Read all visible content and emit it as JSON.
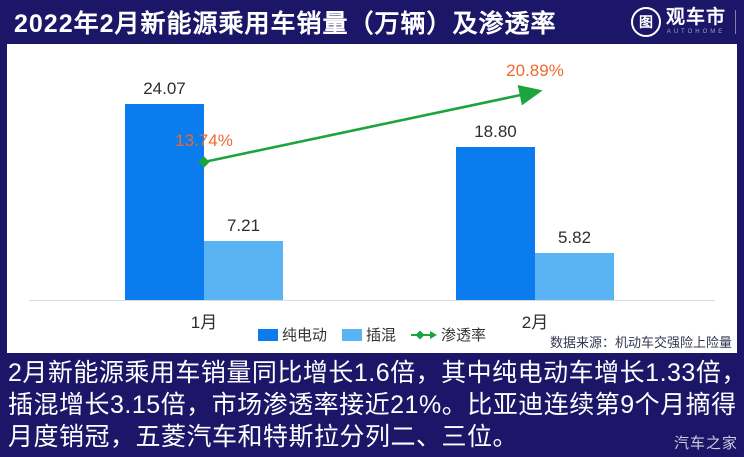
{
  "header": {
    "title": "2022年2月新能源乘用车销量（万辆）及渗透率",
    "logo": {
      "icon_char": "图",
      "brand": "观车市",
      "sub": "AUTOHOME"
    }
  },
  "chart_data": {
    "type": "bar",
    "title": "2022年2月新能源乘用车销量（万辆）及渗透率",
    "categories": [
      "1月",
      "2月"
    ],
    "series": [
      {
        "name": "纯电动",
        "type": "bar",
        "color": "#0a7cee",
        "values": [
          24.07,
          18.8
        ],
        "labels": [
          "24.07",
          "18.80"
        ],
        "label_color": "#2e2e2e"
      },
      {
        "name": "插混",
        "type": "bar",
        "color": "#5ab4f3",
        "values": [
          7.21,
          5.82
        ],
        "labels": [
          "7.21",
          "5.82"
        ],
        "label_color": "#2e2e2e"
      },
      {
        "name": "渗透率",
        "type": "line",
        "color": "#1ca53e",
        "values": [
          13.74,
          20.89
        ],
        "labels": [
          "13.74%",
          "20.89%"
        ],
        "label_color": "#ed6a2f"
      }
    ],
    "bar_ylim": [
      0,
      30
    ],
    "grid": false,
    "legend_position": "bottom",
    "source_note": "数据来源：机动车交强险上险量"
  },
  "footer": {
    "lines": [
      "2月新能源乘用车销量同比增长1.6倍，其中纯电动车增长1.33倍，",
      "插混增长3.15倍，市场渗透率接近21%。比亚迪连续第9个月摘得",
      "月度销冠，五菱汽车和特斯拉分列二、三位。"
    ],
    "watermark": "汽车之家"
  }
}
